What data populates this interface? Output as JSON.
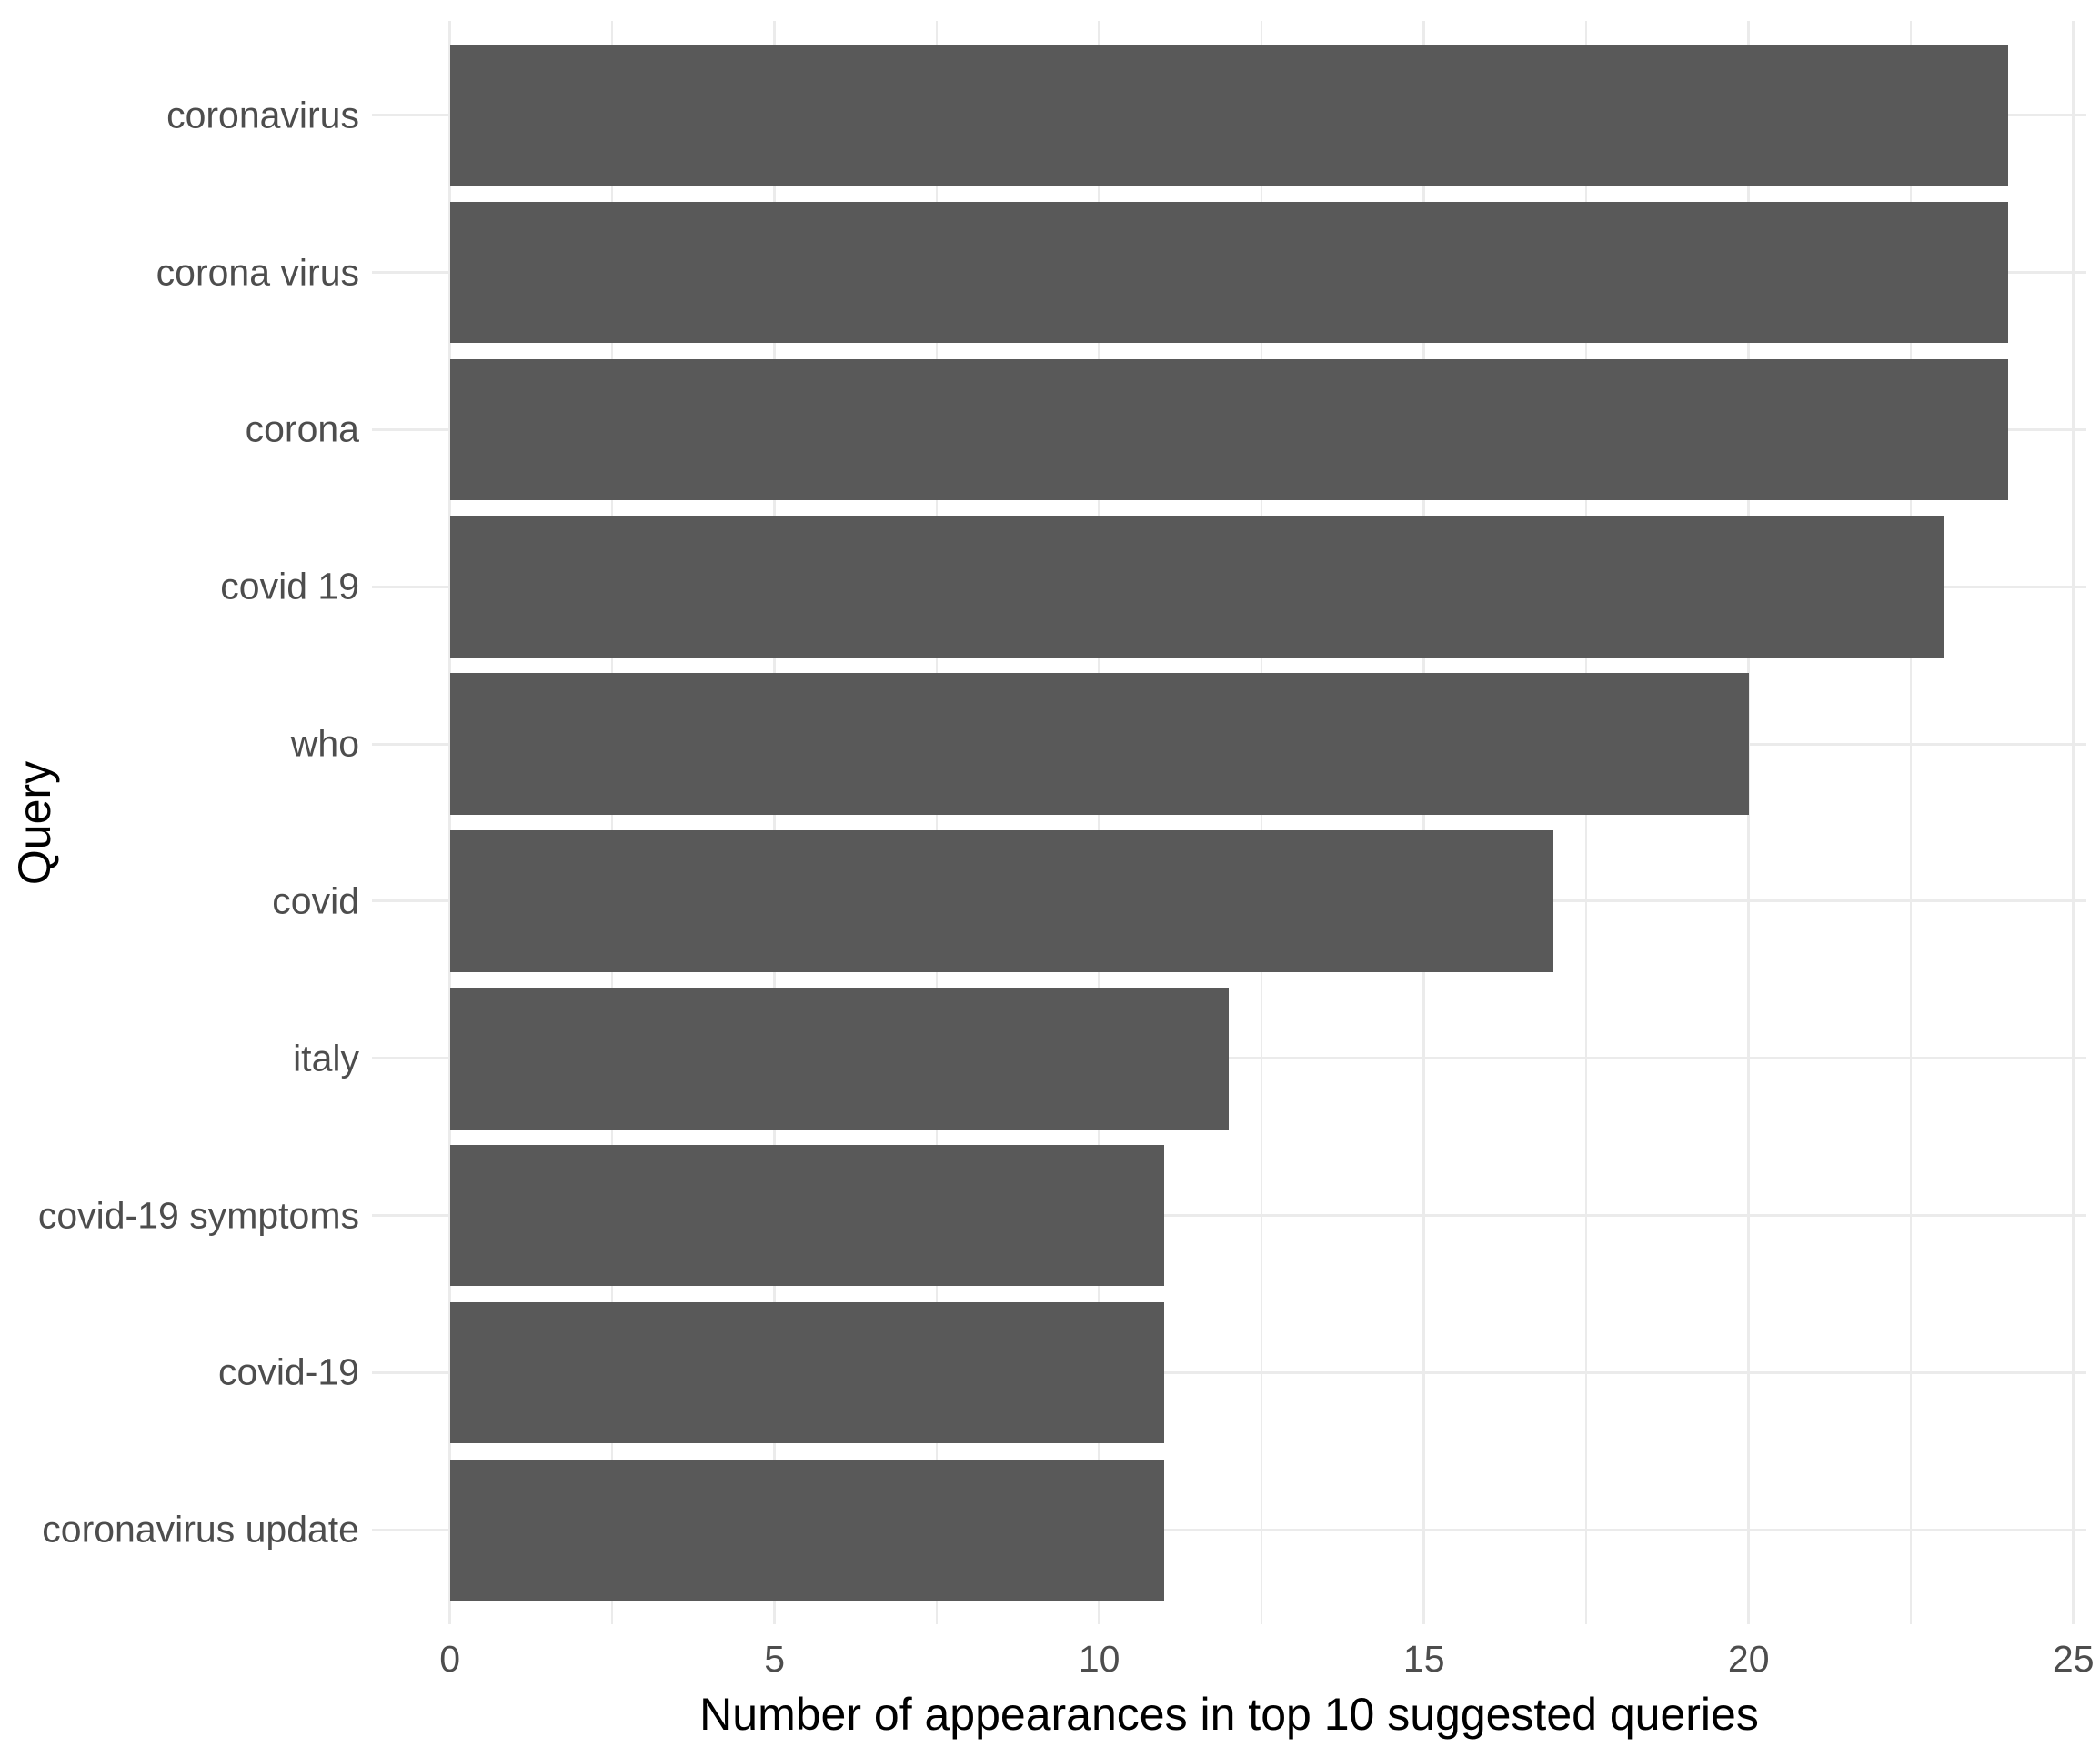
{
  "chart_data": {
    "type": "bar",
    "orientation": "horizontal",
    "title": "",
    "categories": [
      "coronavirus",
      "corona virus",
      "corona",
      "covid 19",
      "who",
      "covid",
      "italy",
      "covid-19 symptoms",
      "covid-19",
      "coronavirus update"
    ],
    "values": [
      24,
      24,
      24,
      23,
      20,
      17,
      12,
      11,
      11,
      11
    ],
    "xlabel": "Number of appearances in top 10 suggested queries",
    "ylabel": "Query",
    "xlim": [
      0,
      25
    ],
    "x_ticks": [
      0,
      5,
      10,
      15,
      20,
      25
    ],
    "x_minor_ticks": [
      2.5,
      7.5,
      12.5,
      17.5,
      22.5
    ],
    "grid": "major and minor vertical, major horizontal per category",
    "legend": false,
    "colors": {
      "bar": "#595959",
      "grid_major": "#ebebeb",
      "grid_minor": "#ebebeb",
      "axis_text": "#4d4d4d",
      "axis_title": "#000000",
      "background": "#ffffff"
    }
  }
}
